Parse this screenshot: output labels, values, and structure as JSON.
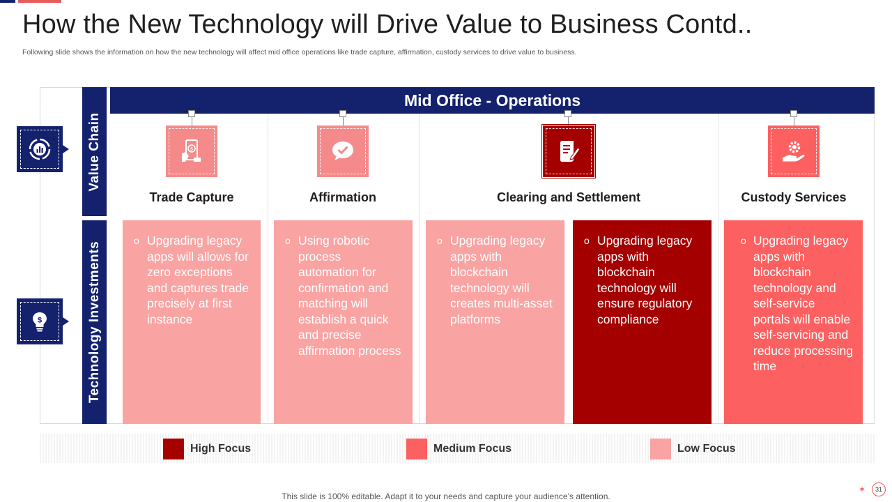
{
  "title": "How the New Technology will Drive Value to Business Contd..",
  "subtitle": "Following slide shows the information on how the new technology will affect mid office operations like trade capture, affirmation, custody services to drive value to business.",
  "colors": {
    "navy": "#14226e",
    "high": "#a50000",
    "medium": "#fc6060",
    "low": "#f9a3a3"
  },
  "row_labels": {
    "value_chain": "Value Chain",
    "tech_investments": "Technology Investments"
  },
  "header": {
    "mid_office": "Mid Office - Operations"
  },
  "columns": [
    {
      "label": "Trade Capture",
      "icon": "mobile-payment-icon"
    },
    {
      "label": "Affirmation",
      "icon": "chat-check-icon"
    },
    {
      "label": "Clearing and Settlement",
      "icon": "document-pen-icon"
    },
    {
      "label": "Custody Services",
      "icon": "hand-gear-icon"
    }
  ],
  "cards": [
    {
      "bullet": "o",
      "text": "Upgrading legacy apps will allows for zero exceptions and captures trade precisely at first instance",
      "focus": "low"
    },
    {
      "bullet": "o",
      "text": "Using robotic process automation for confirmation and matching will establish a quick and precise affirmation process",
      "focus": "low"
    },
    {
      "bullet": "o",
      "text": "Upgrading legacy apps with blockchain technology will creates multi-asset platforms",
      "focus": "low"
    },
    {
      "bullet": "o",
      "text": "Upgrading legacy apps with blockchain technology will ensure regulatory compliance",
      "focus": "high"
    },
    {
      "bullet": "o",
      "text": "Upgrading legacy apps with blockchain technology and self-service portals will enable self-servicing and reduce processing time",
      "focus": "medium"
    }
  ],
  "legend": {
    "high": "High Focus",
    "medium": "Medium Focus",
    "low": "Low Focus"
  },
  "footer": "This slide is 100% editable. Adapt it to your needs and capture your audience’s attention.",
  "page_number": "31"
}
